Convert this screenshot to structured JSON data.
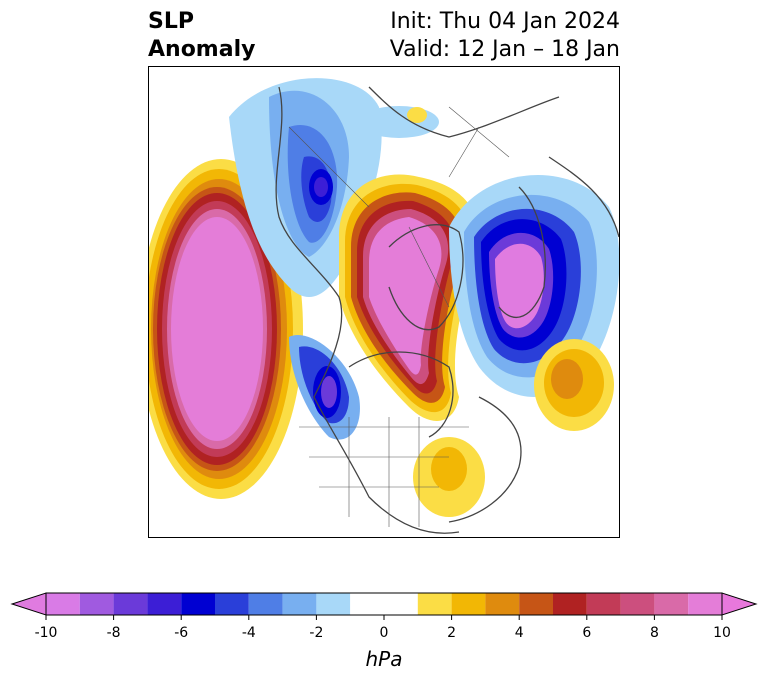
{
  "title": {
    "left_line1": "SLP",
    "left_line2": "Anomaly",
    "right_line1": "Init: Thu 04 Jan 2024",
    "right_line2": "Valid: 12 Jan – 18 Jan"
  },
  "colorbar": {
    "unit": "hPa",
    "extend": "both",
    "boundaries": [
      -10,
      -9,
      -8,
      -7,
      -6,
      -5,
      -4,
      -3,
      -2,
      -1,
      1,
      2,
      3,
      4,
      5,
      6,
      7,
      8,
      9,
      10
    ],
    "colors": [
      "#d97be6",
      "#a05ae0",
      "#6b3ad9",
      "#3c1ed6",
      "#0000d2",
      "#2a3fd9",
      "#4f7ee6",
      "#78aff0",
      "#a8d8f8",
      "#ffffff",
      "#fbdd45",
      "#f2b705",
      "#df8b0e",
      "#c65516",
      "#b02222",
      "#c23b57",
      "#cc4f7e",
      "#d96aa8",
      "#e47dd8"
    ],
    "under_color": "#e07be0",
    "over_color": "#e878dc",
    "tick_values": [
      -10,
      -8,
      -6,
      -4,
      -2,
      0,
      2,
      4,
      6,
      8,
      10
    ],
    "tick_labels": [
      "-10",
      "-8",
      "-6",
      "-4",
      "-2",
      "0",
      "2",
      "4",
      "6",
      "8",
      "10"
    ]
  },
  "map": {
    "projection": "north-polar-stereographic",
    "features": [
      "SLP anomaly filled contours",
      "coastlines",
      "country borders",
      "US state borders"
    ],
    "anomaly_centers": [
      {
        "region": "North Pacific / Gulf of Alaska",
        "sign": "positive",
        "peak_hPa": 10
      },
      {
        "region": "Arctic Ocean / Siberia / Alaska",
        "sign": "positive",
        "peak_hPa": 10
      },
      {
        "region": "Northern Europe / Scandinavia",
        "sign": "negative",
        "peak_hPa": -8
      },
      {
        "region": "Greenland / North Atlantic",
        "sign": "negative",
        "peak_hPa": -10
      },
      {
        "region": "Western North America",
        "sign": "negative",
        "peak_hPa": -8
      },
      {
        "region": "Central North Atlantic",
        "sign": "positive",
        "peak_hPa": 5
      },
      {
        "region": "Western Atlantic off US East Coast",
        "sign": "positive",
        "peak_hPa": 3
      }
    ]
  }
}
